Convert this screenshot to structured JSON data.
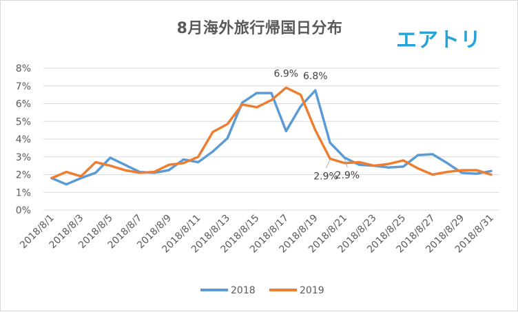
{
  "brand": {
    "name": "エアトリ",
    "color": "#27a3d9"
  },
  "chart_data": {
    "type": "line",
    "title": "8月海外旅行帰国日分布",
    "xlabel": "",
    "ylabel": "",
    "ylim": [
      0,
      8
    ],
    "y_unit": "%",
    "y_ticks": [
      "0%",
      "1%",
      "2%",
      "3%",
      "4%",
      "5%",
      "6%",
      "7%",
      "8%"
    ],
    "grid": "horizontal",
    "legend_position": "bottom",
    "x": [
      "2018/8/1",
      "2018/8/2",
      "2018/8/3",
      "2018/8/4",
      "2018/8/5",
      "2018/8/6",
      "2018/8/7",
      "2018/8/8",
      "2018/8/9",
      "2018/8/10",
      "2018/8/11",
      "2018/8/12",
      "2018/8/13",
      "2018/8/14",
      "2018/8/15",
      "2018/8/16",
      "2018/8/17",
      "2018/8/18",
      "2018/8/19",
      "2018/8/20",
      "2018/8/21",
      "2018/8/22",
      "2018/8/23",
      "2018/8/24",
      "2018/8/25",
      "2018/8/26",
      "2018/8/27",
      "2018/8/28",
      "2018/8/29",
      "2018/8/30",
      "2018/8/31"
    ],
    "x_tick_labels": [
      "2018/8/1",
      "2018/8/3",
      "2018/8/5",
      "2018/8/7",
      "2018/8/9",
      "2018/8/11",
      "2018/8/13",
      "2018/8/15",
      "2018/8/17",
      "2018/8/19",
      "2018/8/21",
      "2018/8/23",
      "2018/8/25",
      "2018/8/27",
      "2018/8/29",
      "2018/8/31"
    ],
    "series": [
      {
        "name": "2018",
        "color": "#5b9bd5",
        "values": [
          1.8,
          1.45,
          1.8,
          2.1,
          2.95,
          2.55,
          2.15,
          2.1,
          2.25,
          2.85,
          2.7,
          3.3,
          4.05,
          6.05,
          6.6,
          6.6,
          4.45,
          5.85,
          6.75,
          3.8,
          2.95,
          2.55,
          2.5,
          2.4,
          2.45,
          3.1,
          3.15,
          2.65,
          2.1,
          2.05,
          2.2
        ]
      },
      {
        "name": "2019",
        "color": "#ed7d31",
        "values": [
          1.8,
          2.15,
          1.9,
          2.7,
          2.5,
          2.25,
          2.1,
          2.15,
          2.55,
          2.65,
          3.0,
          4.4,
          4.85,
          5.95,
          5.8,
          6.2,
          6.9,
          6.5,
          4.5,
          2.9,
          2.65,
          2.7,
          2.5,
          2.6,
          2.8,
          2.35,
          2.0,
          2.15,
          2.25,
          2.25,
          2.0
        ]
      }
    ],
    "annotations": [
      {
        "text": "6.9%",
        "series": 1,
        "index": 16,
        "placement": "above"
      },
      {
        "text": "6.8%",
        "series": 0,
        "index": 18,
        "placement": "above"
      },
      {
        "text": "2.9%",
        "series": 1,
        "index": 19,
        "placement": "below-leader"
      },
      {
        "text": "2.9%",
        "series": 0,
        "index": 20,
        "placement": "below-leader"
      }
    ]
  }
}
